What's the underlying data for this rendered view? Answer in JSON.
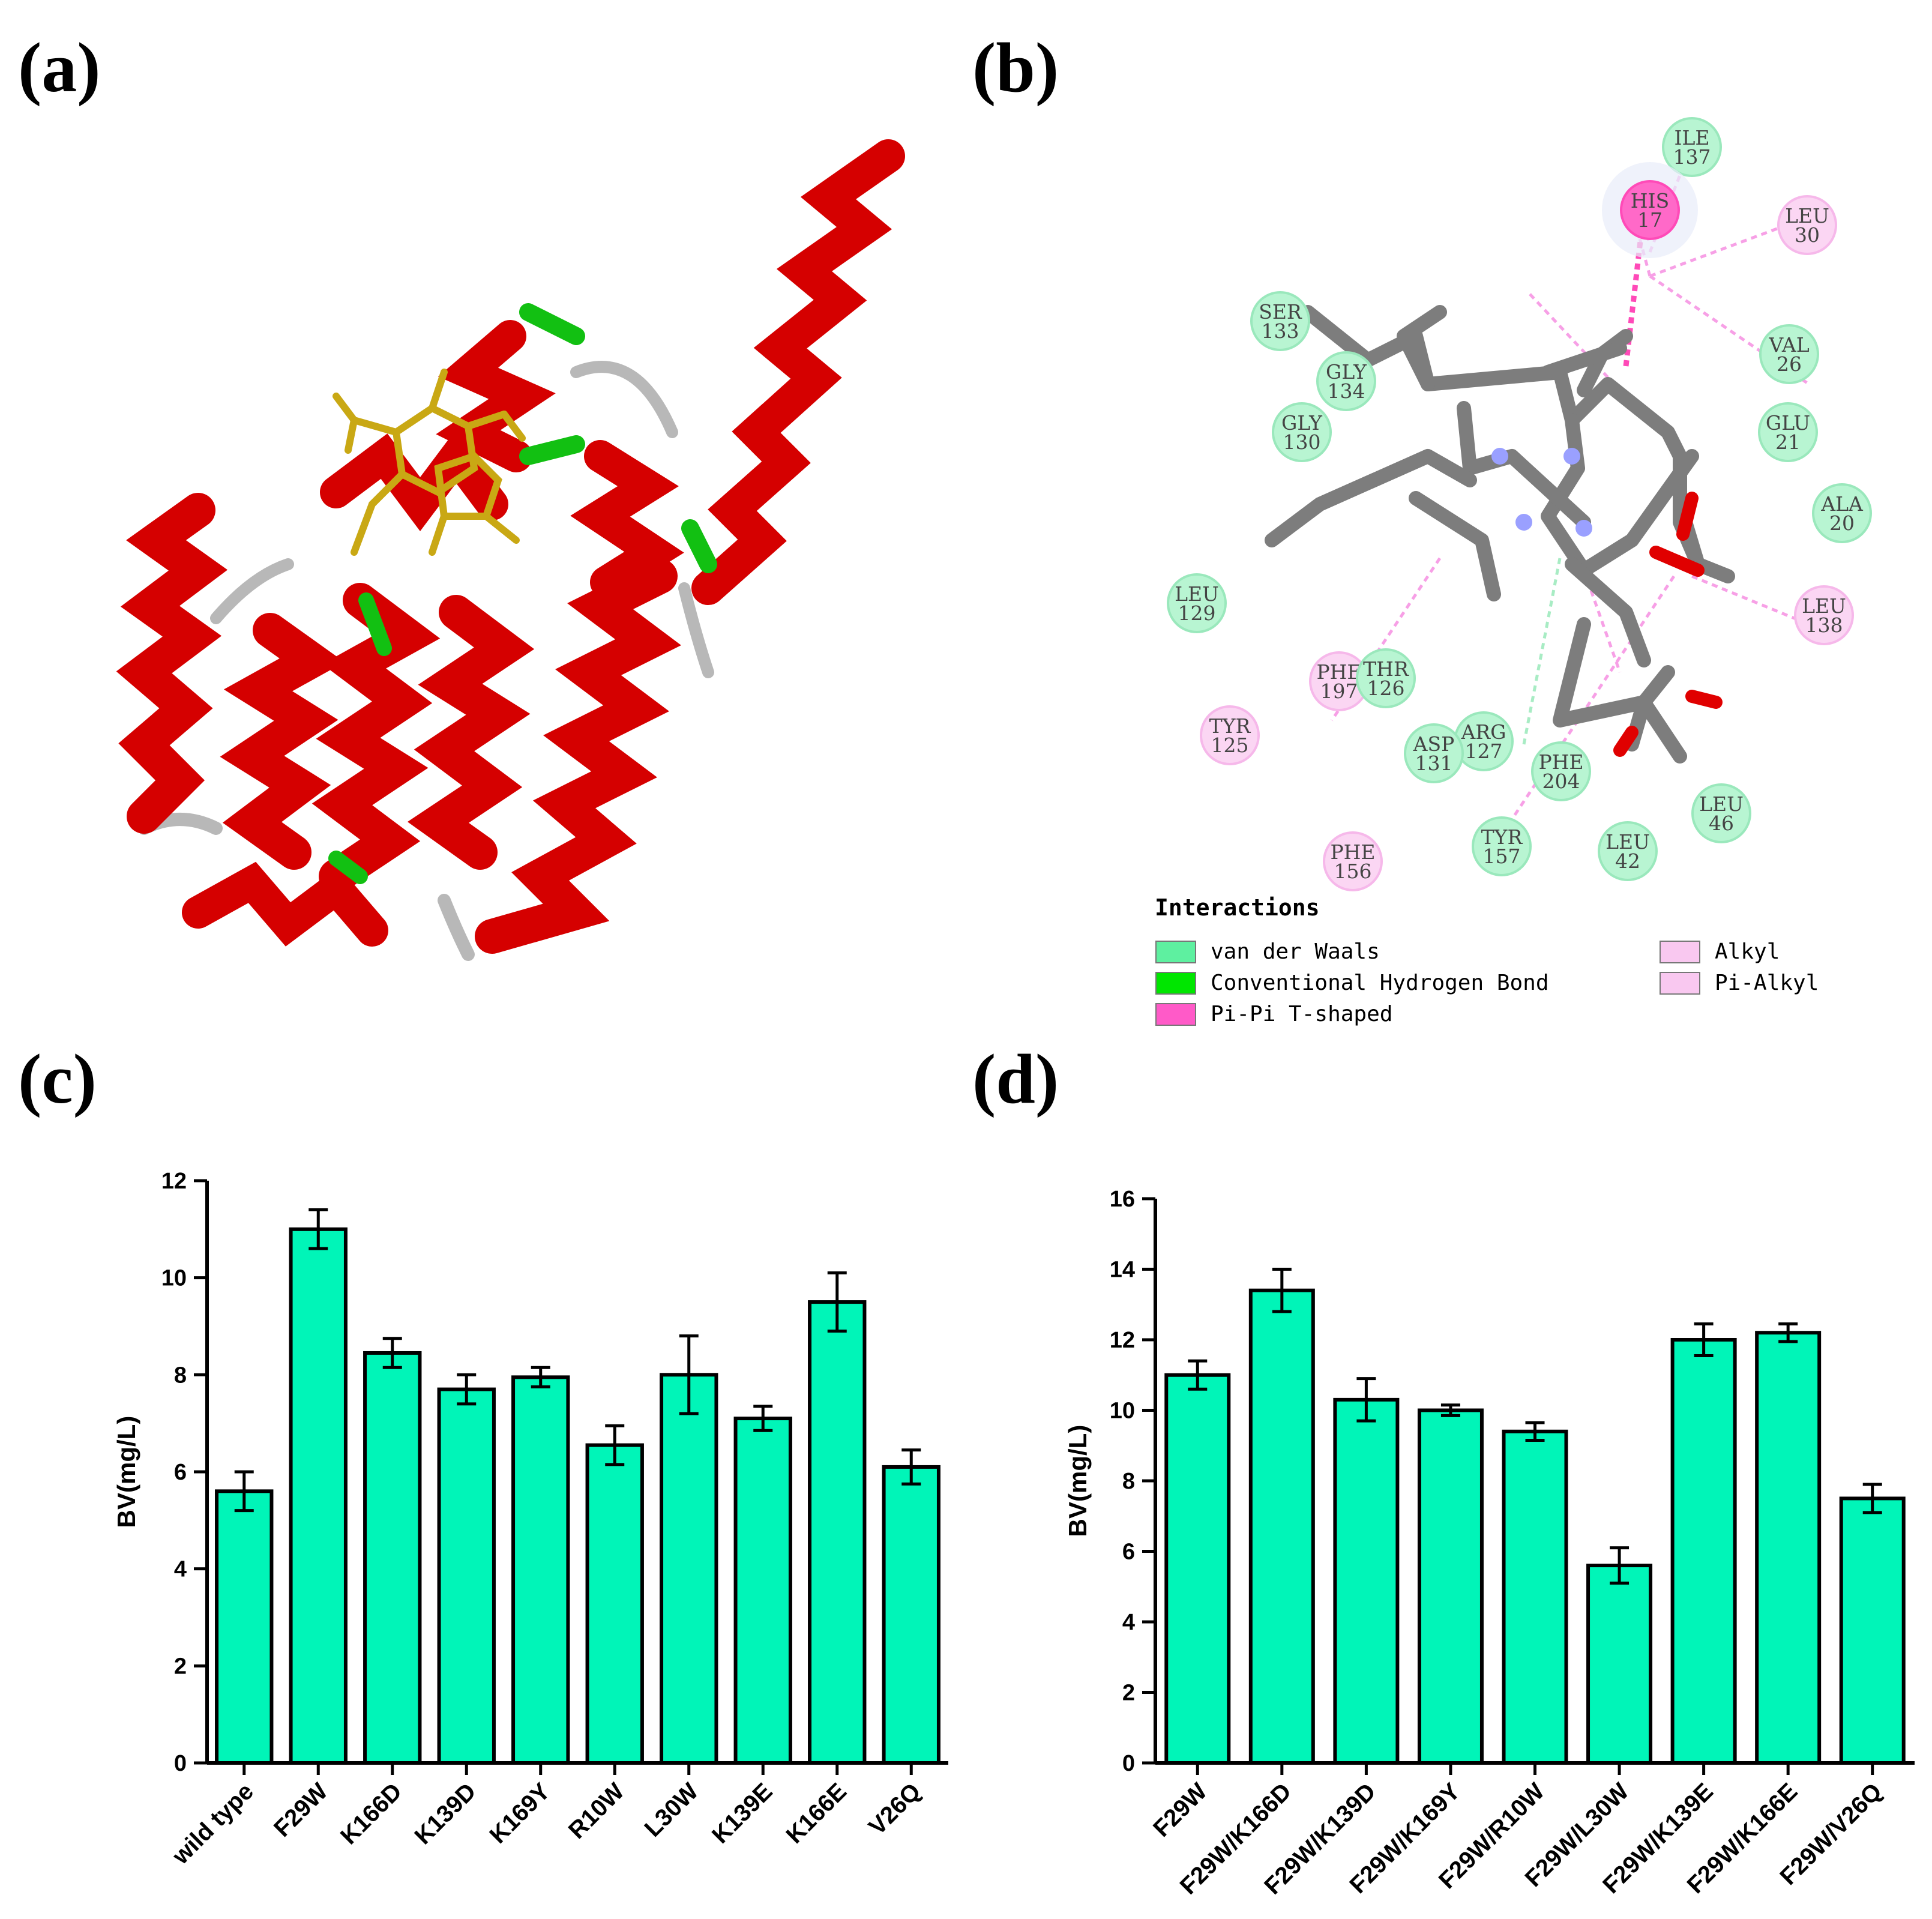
{
  "panels": {
    "a": "(a)",
    "b": "(b)",
    "c": "(c)",
    "d": "(d)"
  },
  "colors": {
    "bar": "#00f5b8",
    "helix": "#d50000",
    "strand_green": "#12c012",
    "ligand": "#c9a814"
  },
  "interaction_diagram": {
    "legend_title": "Interactions",
    "legend": [
      {
        "label": "van der Waals",
        "color": "#5ef0a0"
      },
      {
        "label": "Conventional Hydrogen Bond",
        "color": "#00e600"
      },
      {
        "label": "Pi-Pi T-shaped",
        "color": "#ff5ac8"
      },
      {
        "label": "Alkyl",
        "color": "#f9c8f0"
      },
      {
        "label": "Pi-Alkyl",
        "color": "#f9c8f0"
      }
    ],
    "residues": [
      {
        "name": "ILE",
        "num": "137",
        "kind": "vdw"
      },
      {
        "name": "HIS",
        "num": "17",
        "kind": "pipi"
      },
      {
        "name": "LEU",
        "num": "30",
        "kind": "alkyl"
      },
      {
        "name": "SER",
        "num": "133",
        "kind": "vdw"
      },
      {
        "name": "GLY",
        "num": "134",
        "kind": "vdw"
      },
      {
        "name": "GLY",
        "num": "130",
        "kind": "vdw"
      },
      {
        "name": "VAL",
        "num": "26",
        "kind": "vdw"
      },
      {
        "name": "GLU",
        "num": "21",
        "kind": "vdw"
      },
      {
        "name": "ALA",
        "num": "20",
        "kind": "vdw"
      },
      {
        "name": "LEU",
        "num": "138",
        "kind": "alkyl"
      },
      {
        "name": "LEU",
        "num": "129",
        "kind": "vdw"
      },
      {
        "name": "PHE",
        "num": "197",
        "kind": "alkyl"
      },
      {
        "name": "THR",
        "num": "126",
        "kind": "vdw"
      },
      {
        "name": "TYR",
        "num": "125",
        "kind": "alkyl"
      },
      {
        "name": "ARG",
        "num": "127",
        "kind": "vdw"
      },
      {
        "name": "ASP",
        "num": "131",
        "kind": "vdw"
      },
      {
        "name": "PHE",
        "num": "204",
        "kind": "vdw"
      },
      {
        "name": "LEU",
        "num": "46",
        "kind": "vdw"
      },
      {
        "name": "TYR",
        "num": "157",
        "kind": "vdw"
      },
      {
        "name": "LEU",
        "num": "42",
        "kind": "vdw"
      },
      {
        "name": "PHE",
        "num": "156",
        "kind": "alkyl"
      }
    ]
  },
  "chart_data": [
    {
      "panel": "c",
      "type": "bar",
      "categories": [
        "wild type",
        "F29W",
        "K166D",
        "K139D",
        "K169Y",
        "R10W",
        "L30W",
        "K139E",
        "K166E",
        "V26Q"
      ],
      "values": [
        5.6,
        11.0,
        8.45,
        7.7,
        7.95,
        6.55,
        8.0,
        7.1,
        9.5,
        6.1
      ],
      "errors": [
        0.4,
        0.4,
        0.3,
        0.3,
        0.2,
        0.4,
        0.8,
        0.25,
        0.6,
        0.35
      ],
      "ylabel": "BV(mg/L)",
      "ylim": [
        0,
        12
      ],
      "yticks": [
        "0",
        "2",
        "4",
        "6",
        "8",
        "10",
        "12"
      ]
    },
    {
      "panel": "d",
      "type": "bar",
      "categories": [
        "F29W",
        "F29W/K166D",
        "F29W/K139D",
        "F29W/K169Y",
        "F29W/R10W",
        "F29W/L30W",
        "F29W/K139E",
        "F29W/K166E",
        "F29W/V26Q"
      ],
      "values": [
        11.0,
        13.4,
        10.3,
        10.0,
        9.4,
        5.6,
        12.0,
        12.2,
        7.5
      ],
      "errors": [
        0.4,
        0.6,
        0.6,
        0.15,
        0.25,
        0.5,
        0.45,
        0.25,
        0.4
      ],
      "ylabel": "BV(mg/L)",
      "ylim": [
        0,
        16
      ],
      "yticks": [
        "0",
        "2",
        "4",
        "6",
        "8",
        "10",
        "12",
        "14",
        "16"
      ]
    }
  ]
}
